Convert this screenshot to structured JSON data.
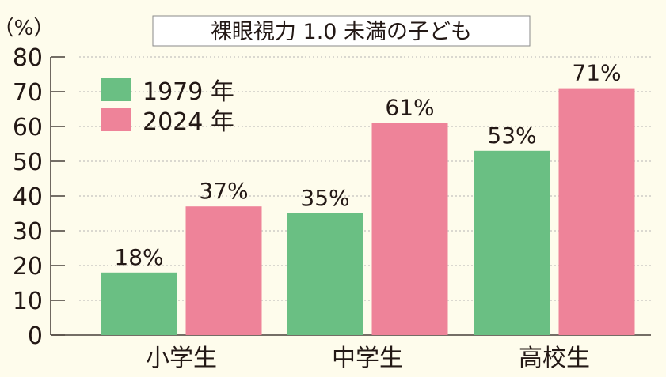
{
  "chart_data": {
    "type": "bar",
    "title": "裸眼視力 1.0 未満の子ども",
    "ylabel": "（%）",
    "ylim": [
      0,
      80
    ],
    "yticks": [
      "0",
      "10",
      "20",
      "30",
      "40",
      "50",
      "60",
      "70",
      "80"
    ],
    "grid": true,
    "legend_position": "top-left",
    "categories": [
      "小学生",
      "中学生",
      "高校生"
    ],
    "series": [
      {
        "name": "1979 年",
        "color": "#6abf83",
        "values": [
          18,
          35,
          53
        ],
        "labels": [
          "18%",
          "35%",
          "53%"
        ]
      },
      {
        "name": "2024 年",
        "color": "#ee8399",
        "values": [
          37,
          61,
          71
        ],
        "labels": [
          "37%",
          "61%",
          "71%"
        ]
      }
    ]
  }
}
